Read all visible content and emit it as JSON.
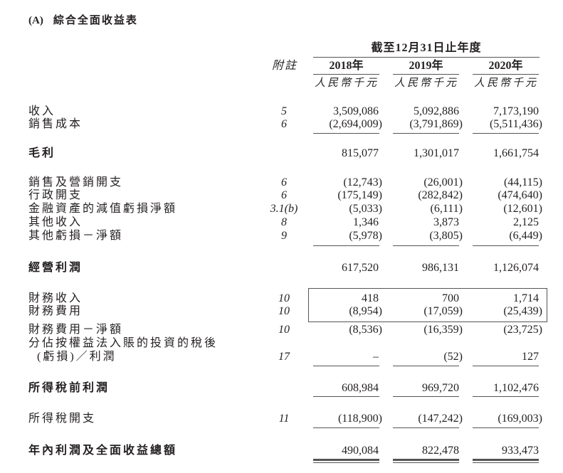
{
  "section": {
    "marker": "(A)",
    "title": "綜合全面收益表"
  },
  "header": {
    "period": "截至12月31日止年度",
    "note_label": "附註",
    "years": [
      "2018年",
      "2019年",
      "2020年"
    ],
    "units": [
      "人民幣千元",
      "人民幣千元",
      "人民幣千元"
    ]
  },
  "rows": [
    {
      "label": "收入",
      "note": "5",
      "values": [
        "3,509,086",
        "5,092,886",
        "7,173,190"
      ]
    },
    {
      "label": "銷售成本",
      "note": "6",
      "values": [
        "(2,694,009)",
        "(3,791,869)",
        "(5,511,436)"
      ]
    },
    {
      "label": "毛利",
      "note": "",
      "values": [
        "815,077",
        "1,301,017",
        "1,661,754"
      ],
      "bold": true
    },
    {
      "label": "銷售及營銷開支",
      "note": "6",
      "values": [
        "(12,743)",
        "(26,001)",
        "(44,115)"
      ]
    },
    {
      "label": "行政開支",
      "note": "6",
      "values": [
        "(175,149)",
        "(282,842)",
        "(474,640)"
      ]
    },
    {
      "label": "金融資產的減值虧損淨額",
      "note": "3.1(b)",
      "values": [
        "(5,033)",
        "(6,111)",
        "(12,601)"
      ]
    },
    {
      "label": "其他收入",
      "note": "8",
      "values": [
        "1,346",
        "3,873",
        "2,125"
      ]
    },
    {
      "label": "其他虧損－淨額",
      "note": "9",
      "values": [
        "(5,978)",
        "(3,805)",
        "(6,449)"
      ]
    },
    {
      "label": "經營利潤",
      "note": "",
      "values": [
        "617,520",
        "986,131",
        "1,126,074"
      ],
      "bold": true
    },
    {
      "label": "財務收入",
      "note": "10",
      "values": [
        "418",
        "700",
        "1,714"
      ]
    },
    {
      "label": "財務費用",
      "note": "10",
      "values": [
        "(8,954)",
        "(17,059)",
        "(25,439)"
      ]
    },
    {
      "label": "財務費用－淨額",
      "note": "10",
      "values": [
        "(8,536)",
        "(16,359)",
        "(23,725)"
      ]
    },
    {
      "label": "分佔按權益法入賬的投資的稅後",
      "note": "",
      "values": [
        "",
        "",
        ""
      ]
    },
    {
      "label": "(虧損)／利潤",
      "note": "17",
      "values": [
        "–",
        "(52)",
        "127"
      ],
      "indent": true
    },
    {
      "label": "所得稅前利潤",
      "note": "",
      "values": [
        "608,984",
        "969,720",
        "1,102,476"
      ],
      "bold": true
    },
    {
      "label": "所得稅開支",
      "note": "11",
      "values": [
        "(118,900)",
        "(147,242)",
        "(169,003)"
      ]
    },
    {
      "label": "年內利潤及全面收益總額",
      "note": "",
      "values": [
        "490,084",
        "822,478",
        "933,473"
      ],
      "bold": true
    }
  ]
}
